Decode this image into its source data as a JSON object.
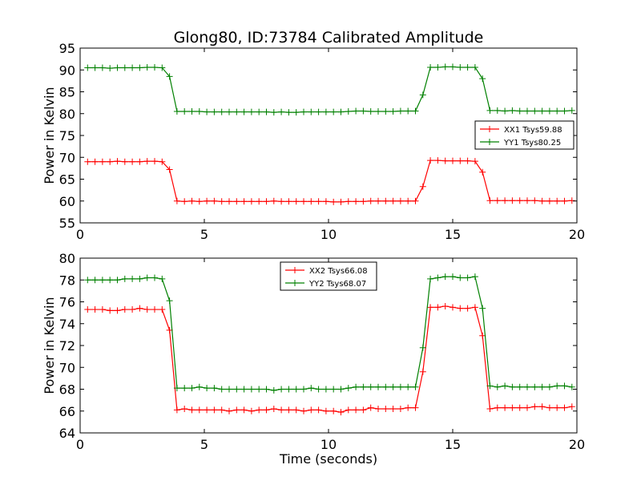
{
  "title": "Glong80, ID:73784 Calibrated Amplitude",
  "chart_data": [
    {
      "type": "line",
      "title": "Glong80, ID:73784 Calibrated Amplitude",
      "xlabel": "",
      "ylabel": "Power in Kelvin",
      "xlim": [
        0,
        20
      ],
      "ylim": [
        55,
        95
      ],
      "xticks": [
        "0",
        "5",
        "10",
        "15",
        "20"
      ],
      "yticks": [
        "55",
        "60",
        "65",
        "70",
        "75",
        "80",
        "85",
        "90",
        "95"
      ],
      "grid": false,
      "legend_position": "center-right",
      "x": [
        0.3,
        0.6,
        0.9,
        1.2,
        1.5,
        1.8,
        2.1,
        2.4,
        2.7,
        3.0,
        3.3,
        3.6,
        3.9,
        4.2,
        4.5,
        4.8,
        5.1,
        5.4,
        5.7,
        6.0,
        6.3,
        6.6,
        6.9,
        7.2,
        7.5,
        7.8,
        8.1,
        8.4,
        8.7,
        9.0,
        9.3,
        9.6,
        9.9,
        10.2,
        10.5,
        10.8,
        11.1,
        11.4,
        11.7,
        12.0,
        12.3,
        12.6,
        12.9,
        13.2,
        13.5,
        13.8,
        14.1,
        14.4,
        14.7,
        15.0,
        15.3,
        15.6,
        15.9,
        16.2,
        16.5,
        16.8,
        17.1,
        17.4,
        17.7,
        18.0,
        18.3,
        18.6,
        18.9,
        19.2,
        19.5,
        19.8
      ],
      "series": [
        {
          "name": "XX1 Tsys59.88",
          "color": "#ff0000",
          "values": [
            69.0,
            69.0,
            69.0,
            69.0,
            69.1,
            69.0,
            69.0,
            69.0,
            69.1,
            69.1,
            69.0,
            67.2,
            60.0,
            59.9,
            60.0,
            59.9,
            60.0,
            60.0,
            59.9,
            59.9,
            59.9,
            59.9,
            59.9,
            59.9,
            59.9,
            60.0,
            59.9,
            59.9,
            59.9,
            59.9,
            59.9,
            59.9,
            59.9,
            59.8,
            59.8,
            59.9,
            59.9,
            59.9,
            60.0,
            60.0,
            60.0,
            60.0,
            60.0,
            60.0,
            60.0,
            63.3,
            69.3,
            69.3,
            69.2,
            69.2,
            69.2,
            69.2,
            69.1,
            66.6,
            60.1,
            60.1,
            60.1,
            60.1,
            60.1,
            60.1,
            60.1,
            60.0,
            60.0,
            60.0,
            60.0,
            60.1
          ]
        },
        {
          "name": "YY1 Tsys80.25",
          "color": "#008000",
          "values": [
            90.5,
            90.5,
            90.5,
            90.4,
            90.5,
            90.5,
            90.5,
            90.5,
            90.6,
            90.6,
            90.5,
            88.5,
            80.5,
            80.5,
            80.5,
            80.5,
            80.4,
            80.4,
            80.4,
            80.4,
            80.4,
            80.4,
            80.4,
            80.4,
            80.4,
            80.3,
            80.4,
            80.3,
            80.3,
            80.4,
            80.4,
            80.4,
            80.4,
            80.4,
            80.4,
            80.5,
            80.6,
            80.6,
            80.5,
            80.5,
            80.5,
            80.5,
            80.6,
            80.6,
            80.6,
            84.3,
            90.6,
            90.6,
            90.7,
            90.7,
            90.6,
            90.6,
            90.6,
            88.0,
            80.7,
            80.7,
            80.6,
            80.7,
            80.6,
            80.6,
            80.6,
            80.6,
            80.6,
            80.6,
            80.6,
            80.7
          ]
        }
      ]
    },
    {
      "type": "line",
      "title": "",
      "xlabel": "Time (seconds)",
      "ylabel": "Power in Kelvin",
      "xlim": [
        0,
        20
      ],
      "ylim": [
        64,
        80
      ],
      "xticks": [
        "0",
        "5",
        "10",
        "15",
        "20"
      ],
      "yticks": [
        "64",
        "66",
        "68",
        "70",
        "72",
        "74",
        "76",
        "78",
        "80"
      ],
      "grid": false,
      "legend_position": "top-center",
      "x": [
        0.3,
        0.6,
        0.9,
        1.2,
        1.5,
        1.8,
        2.1,
        2.4,
        2.7,
        3.0,
        3.3,
        3.6,
        3.9,
        4.2,
        4.5,
        4.8,
        5.1,
        5.4,
        5.7,
        6.0,
        6.3,
        6.6,
        6.9,
        7.2,
        7.5,
        7.8,
        8.1,
        8.4,
        8.7,
        9.0,
        9.3,
        9.6,
        9.9,
        10.2,
        10.5,
        10.8,
        11.1,
        11.4,
        11.7,
        12.0,
        12.3,
        12.6,
        12.9,
        13.2,
        13.5,
        13.8,
        14.1,
        14.4,
        14.7,
        15.0,
        15.3,
        15.6,
        15.9,
        16.2,
        16.5,
        16.8,
        17.1,
        17.4,
        17.7,
        18.0,
        18.3,
        18.6,
        18.9,
        19.2,
        19.5,
        19.8
      ],
      "series": [
        {
          "name": "XX2 Tsys66.08",
          "color": "#ff0000",
          "values": [
            75.3,
            75.3,
            75.3,
            75.2,
            75.2,
            75.3,
            75.3,
            75.4,
            75.3,
            75.3,
            75.3,
            73.4,
            66.1,
            66.2,
            66.1,
            66.1,
            66.1,
            66.1,
            66.1,
            66.0,
            66.1,
            66.1,
            66.0,
            66.1,
            66.1,
            66.2,
            66.1,
            66.1,
            66.1,
            66.0,
            66.1,
            66.1,
            66.0,
            66.0,
            65.9,
            66.1,
            66.1,
            66.1,
            66.3,
            66.2,
            66.2,
            66.2,
            66.2,
            66.3,
            66.3,
            69.6,
            75.5,
            75.5,
            75.6,
            75.5,
            75.4,
            75.4,
            75.5,
            72.9,
            66.2,
            66.3,
            66.3,
            66.3,
            66.3,
            66.3,
            66.4,
            66.4,
            66.3,
            66.3,
            66.3,
            66.4
          ]
        },
        {
          "name": "YY2 Tsys68.07",
          "color": "#008000",
          "values": [
            78.0,
            78.0,
            78.0,
            78.0,
            78.0,
            78.1,
            78.1,
            78.1,
            78.2,
            78.2,
            78.1,
            76.1,
            68.1,
            68.1,
            68.1,
            68.2,
            68.1,
            68.1,
            68.0,
            68.0,
            68.0,
            68.0,
            68.0,
            68.0,
            68.0,
            67.9,
            68.0,
            68.0,
            68.0,
            68.0,
            68.1,
            68.0,
            68.0,
            68.0,
            68.0,
            68.1,
            68.2,
            68.2,
            68.2,
            68.2,
            68.2,
            68.2,
            68.2,
            68.2,
            68.2,
            71.8,
            78.1,
            78.2,
            78.3,
            78.3,
            78.2,
            78.2,
            78.3,
            75.4,
            68.3,
            68.2,
            68.3,
            68.2,
            68.2,
            68.2,
            68.2,
            68.2,
            68.2,
            68.3,
            68.3,
            68.2
          ]
        }
      ]
    }
  ]
}
